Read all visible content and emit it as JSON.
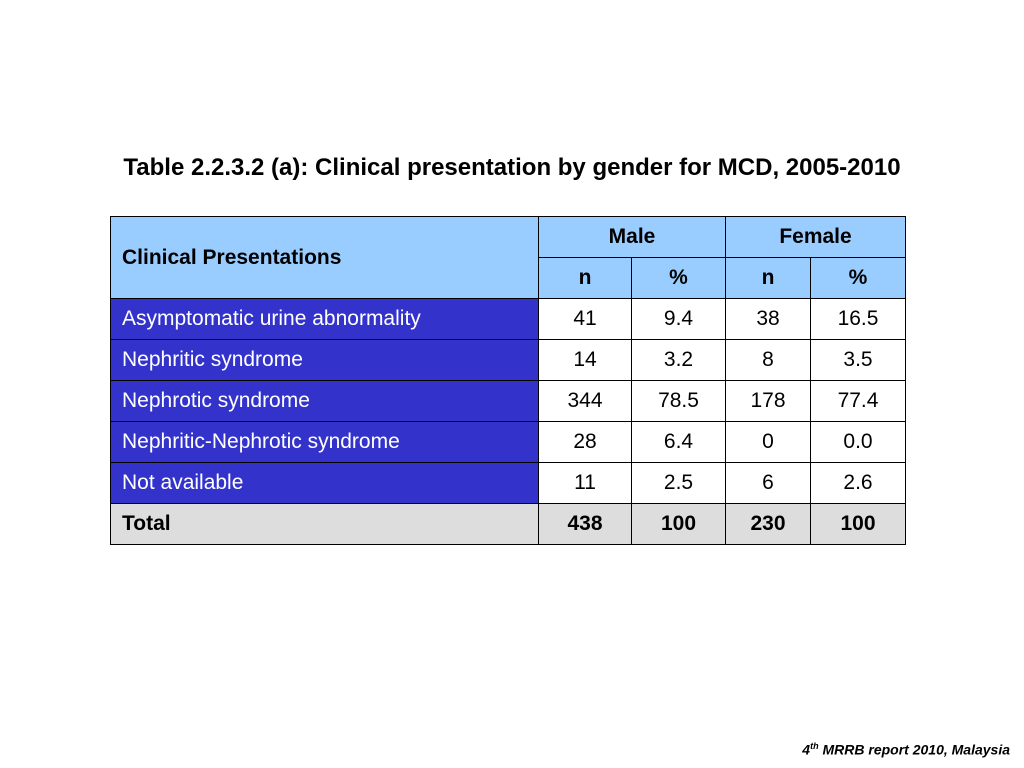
{
  "title": "Table 2.2.3.2 (a): Clinical presentation by gender for MCD, 2005-2010",
  "table": {
    "header": {
      "label": "Clinical Presentations",
      "male": "Male",
      "female": "Female",
      "n1": "n",
      "p1": "%",
      "n2": "n",
      "p2": "%"
    },
    "rows": [
      {
        "label": "Asymptomatic urine abnormality",
        "male_n": "41",
        "male_pct": "9.4",
        "female_n": "38",
        "female_pct": "16.5"
      },
      {
        "label": "Nephritic syndrome",
        "male_n": "14",
        "male_pct": "3.2",
        "female_n": "8",
        "female_pct": "3.5"
      },
      {
        "label": "Nephrotic syndrome",
        "male_n": "344",
        "male_pct": "78.5",
        "female_n": "178",
        "female_pct": "77.4"
      },
      {
        "label": "Nephritic-Nephrotic syndrome",
        "male_n": "28",
        "male_pct": "6.4",
        "female_n": "0",
        "female_pct": "0.0"
      },
      {
        "label": "Not available",
        "male_n": "11",
        "male_pct": "2.5",
        "female_n": "6",
        "female_pct": "2.6"
      }
    ],
    "total": {
      "label": "Total",
      "male_n": "438",
      "male_pct": "100",
      "female_n": "230",
      "female_pct": "100"
    }
  },
  "footer": {
    "ordinal": "4",
    "suffix": "th",
    "text": " MRRB report 2010, Malaysia"
  }
}
